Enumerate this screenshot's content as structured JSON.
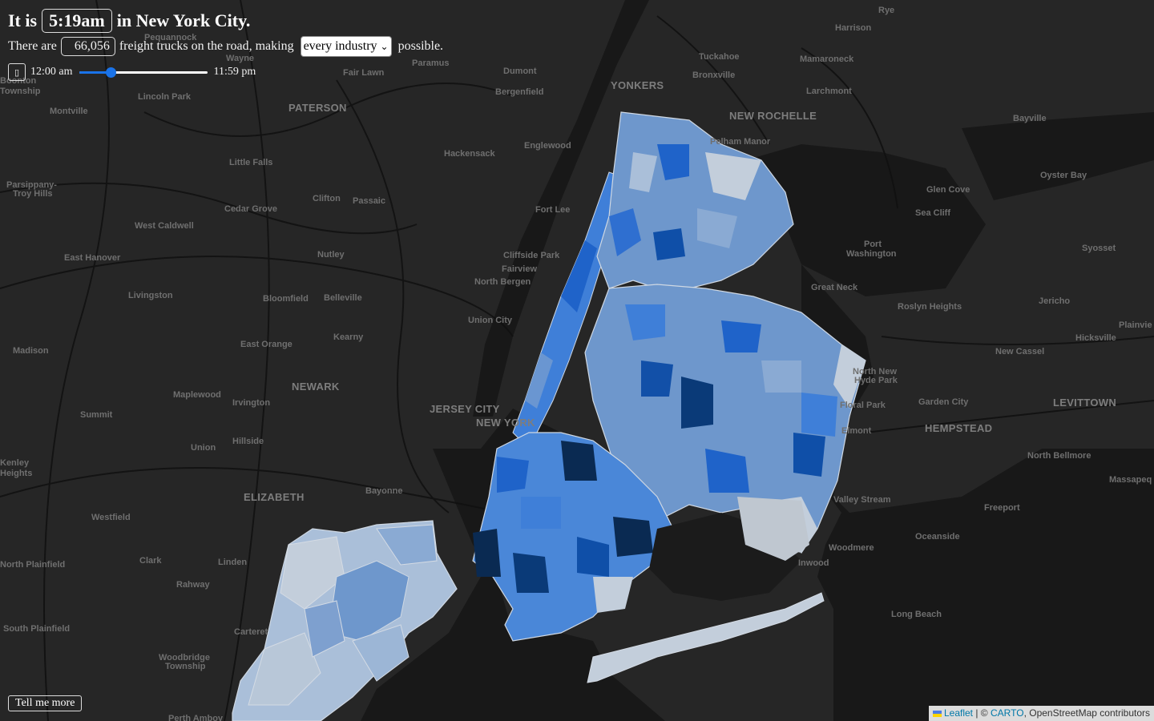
{
  "header": {
    "prefix": "It is",
    "time": "5:19am",
    "suffix": "in New York City."
  },
  "trucks": {
    "prefix": "There are",
    "count": "66,056",
    "middle": "freight trucks on the road, making",
    "industry_selected": "every industry",
    "suffix": "possible."
  },
  "timeline": {
    "play_icon": "play-icon",
    "start_label": "12:00 am",
    "end_label": "11:59 pm",
    "slider_fraction": 0.245
  },
  "more_button": "Tell me more",
  "attribution": {
    "leaflet": "Leaflet",
    "separator": "| ©",
    "carto": "CARTO",
    "osm": ", OpenStreetMap contributors"
  },
  "colors": {
    "map_background": "#262626",
    "slider_accent": "#1a73e8",
    "choropleth_light": "#c3cedb",
    "choropleth_dark": "#0a2a52"
  },
  "places": [
    "Rye",
    "Harrison",
    "Pequannock",
    "Wayne",
    "Paramus",
    "Tuckahoe",
    "Mamaroneck",
    "Boonton Township",
    "Fair Lawn",
    "Dumont",
    "YONKERS",
    "Bronxville",
    "Larchmont",
    "Bergenfield",
    "Lincoln Park",
    "PATERSON",
    "Montville",
    "NEW ROCHELLE",
    "Bayville",
    "Pelham Manor",
    "Hackensack",
    "Englewood",
    "Little Falls",
    "Oyster Bay",
    "Parsippany-Troy Hills",
    "Clifton",
    "Passaic",
    "Glen Cove",
    "Cedar Grove",
    "Fort Lee",
    "Sea Cliff",
    "West Caldwell",
    "Port Washington",
    "Syosset",
    "East Hanover",
    "Nutley",
    "Cliffside Park",
    "Fairview",
    "North Bergen",
    "Great Neck",
    "Livingston",
    "Bloomfield",
    "Belleville",
    "Roslyn Heights",
    "Jericho",
    "Union City",
    "Plainview",
    "Kearny",
    "Hicksville",
    "Madison",
    "East Orange",
    "North New Hyde Park",
    "Glen Cove",
    "Maplewood",
    "Irvington",
    "NEWARK",
    "Floral Park",
    "Garden City",
    "LEVITTOWN",
    "Summit",
    "JERSEY CITY",
    "NEW YORK",
    "Elmont",
    "HEMPSTEAD",
    "Hillside",
    "North Bellmore",
    "Union",
    "Kenley Heights",
    "Massapequa",
    "Bayonne",
    "Westfield",
    "ELIZABETH",
    "Valley Stream",
    "Freeport",
    "Oceanside",
    "Clark",
    "Linden",
    "Woodmere",
    "Inwood",
    "Rahway",
    "North Plainfield",
    "Long Beach",
    "South Plainfield",
    "Carteret",
    "Woodbridge Township",
    "Perth Amboy"
  ]
}
